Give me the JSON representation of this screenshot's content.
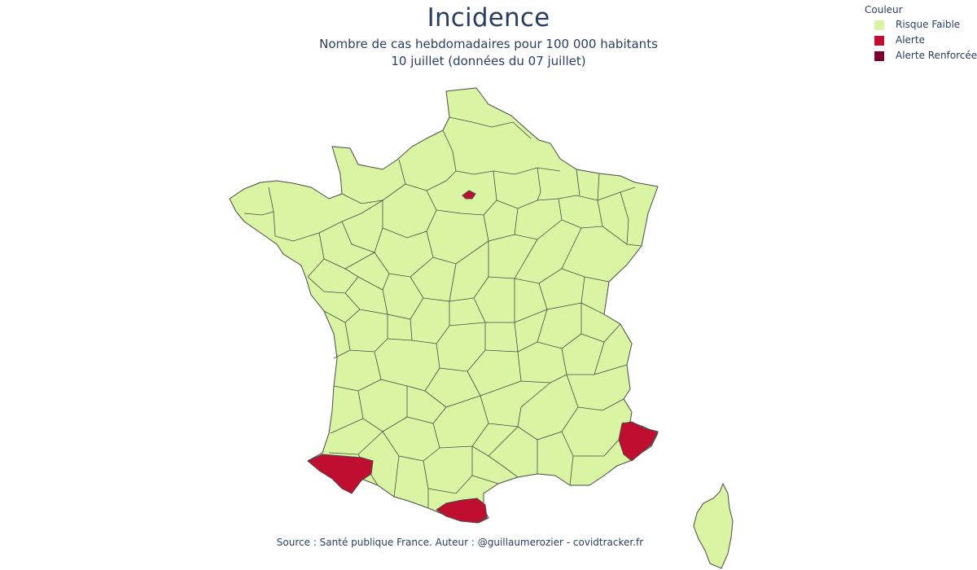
{
  "title": "Incidence",
  "subtitle_line1": "Nombre de cas hebdomadaires pour 100 000 habitants",
  "subtitle_line2": "10 juillet (données du 07 juillet)",
  "legend": {
    "title": "Couleur",
    "items": [
      {
        "label": "Risque Faible",
        "color": "#d9f5a3"
      },
      {
        "label": "Alerte",
        "color": "#c00e30"
      },
      {
        "label": "Alerte Renforcée",
        "color": "#7a0030"
      }
    ]
  },
  "map": {
    "border_color": "#4a4a4a",
    "alert_regions": [
      "Pyrénées-Atlantiques",
      "Pyrénées-Orientales",
      "Alpes-Maritimes",
      "Paris"
    ]
  },
  "source": "Source : Santé publique France. Auteur : @guillaumerozier - covidtracker.fr"
}
